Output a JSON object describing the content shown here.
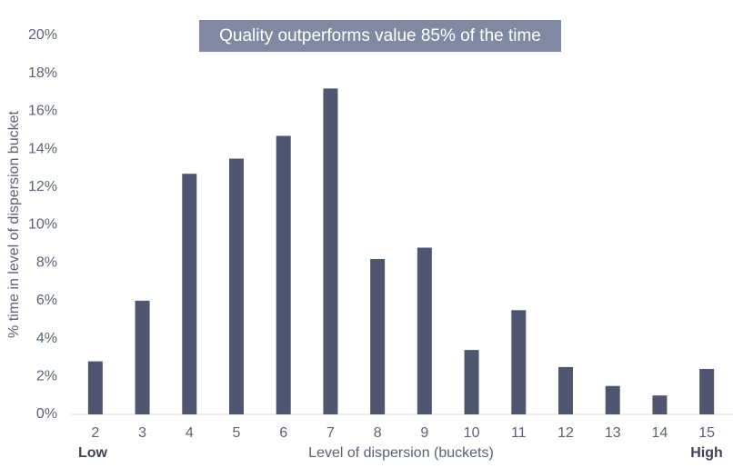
{
  "chart_data": {
    "type": "bar",
    "title": "Quality outperforms value 85% of the time",
    "x_label": "Level of dispersion (buckets)",
    "y_label": "% time in level of dispersion bucket",
    "annotations": [
      "Low",
      "High"
    ],
    "categories": [
      "2",
      "3",
      "4",
      "5",
      "6",
      "7",
      "8",
      "9",
      "10",
      "11",
      "12",
      "13",
      "14",
      "15"
    ],
    "values": [
      2.8,
      6.0,
      12.7,
      13.5,
      14.7,
      17.2,
      8.2,
      8.8,
      3.4,
      5.5,
      2.5,
      1.5,
      1.0,
      2.4
    ],
    "color": "#4f5670",
    "ylim": [
      0,
      20
    ],
    "yticks": [
      {
        "value": 0,
        "label": "0%"
      },
      {
        "value": 2,
        "label": "2%"
      },
      {
        "value": 4,
        "label": "4%"
      },
      {
        "value": 6,
        "label": "6%"
      },
      {
        "value": 8,
        "label": "8%"
      },
      {
        "value": 10,
        "label": "10%"
      },
      {
        "value": 12,
        "label": "12%"
      },
      {
        "value": 14,
        "label": "14%"
      },
      {
        "value": 16,
        "label": "16%"
      },
      {
        "value": 18,
        "label": "18%"
      },
      {
        "value": 20,
        "label": "20%"
      }
    ],
    "grid": false
  }
}
